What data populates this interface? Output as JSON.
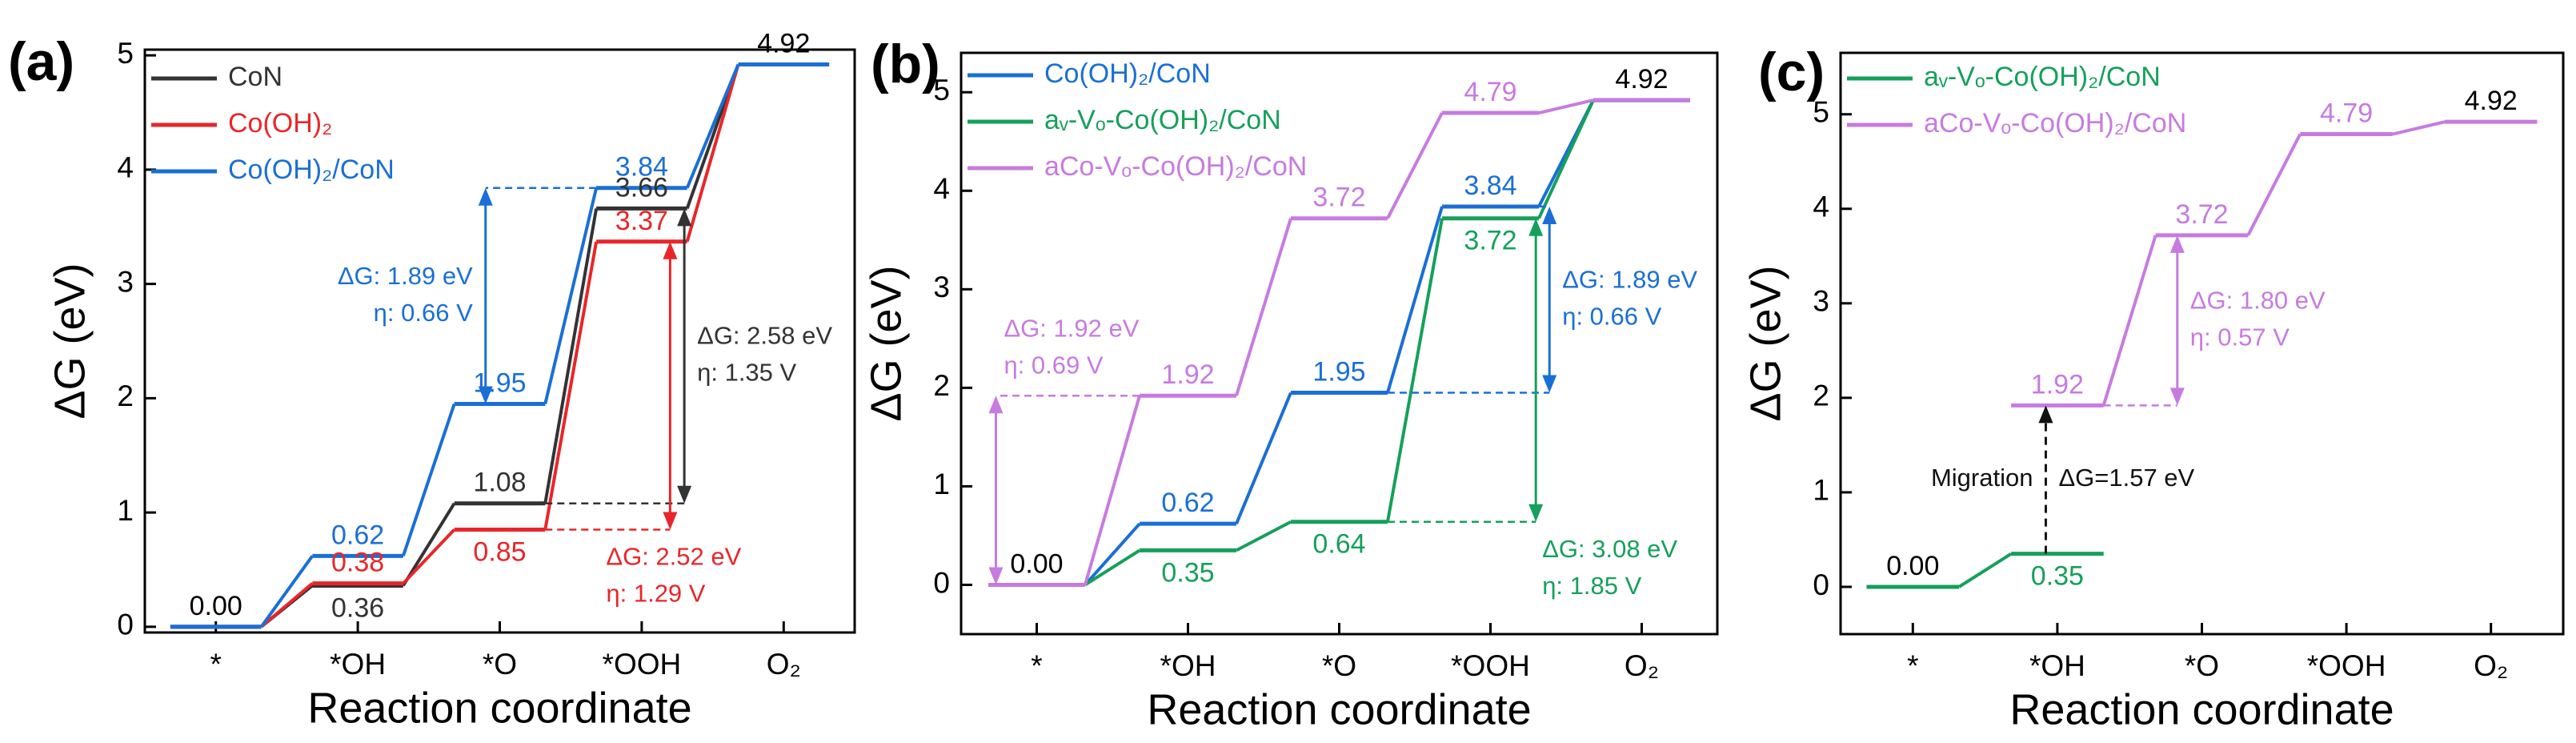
{
  "chart_data": [
    {
      "type": "energy-diagram",
      "panel_label": "(a)",
      "ylabel": "ΔG (eV)",
      "xlabel": "Reaction coordinate",
      "categories": [
        "*",
        "*OH",
        "*O",
        "*OOH",
        "O₂"
      ],
      "ylim": [
        -0.05,
        5.05
      ],
      "yticks": [
        0,
        1,
        2,
        3,
        4,
        5
      ],
      "legend": "upper left",
      "series": [
        {
          "name": "CoN",
          "color": "#333333",
          "values": [
            0,
            0.36,
            1.08,
            3.66,
            4.92
          ],
          "value_labels": [
            "0.00",
            "0.36",
            "1.08",
            "3.66",
            "4.92"
          ]
        },
        {
          "name": "Co(OH)₂",
          "color": "#e8262a",
          "values": [
            0,
            0.38,
            0.85,
            3.37,
            4.92
          ],
          "value_labels": [
            null,
            "0.38",
            "0.85",
            "3.37",
            null
          ]
        },
        {
          "name": "Co(OH)₂/CoN",
          "color": "#1a6fd6",
          "values": [
            0,
            0.62,
            1.95,
            3.84,
            4.92
          ],
          "value_labels": [
            null,
            "0.62",
            "1.95",
            "3.84",
            null
          ]
        }
      ],
      "annotations": [
        {
          "lines": [
            "ΔG: 1.89 eV",
            "η: 0.66 V"
          ],
          "color": "#1a6fd6"
        },
        {
          "lines": [
            "ΔG: 2.58 eV",
            "η: 1.35 V"
          ],
          "color": "#333333"
        },
        {
          "lines": [
            "ΔG: 2.52 eV",
            "η: 1.29 V"
          ],
          "color": "#e8262a"
        }
      ]
    },
    {
      "type": "energy-diagram",
      "panel_label": "(b)",
      "ylabel": "ΔG (eV)",
      "xlabel": "Reaction coordinate",
      "categories": [
        "*",
        "*OH",
        "*O",
        "*OOH",
        "O₂"
      ],
      "ylim": [
        -0.5,
        5.4
      ],
      "yticks": [
        0,
        1,
        2,
        3,
        4,
        5
      ],
      "legend": "upper left",
      "series": [
        {
          "name": "Co(OH)₂/CoN",
          "color": "#1a6fd6",
          "values": [
            0,
            0.62,
            1.95,
            3.84,
            4.92
          ],
          "value_labels": [
            "0.00",
            "0.62",
            "1.95",
            "3.84",
            "4.92"
          ]
        },
        {
          "name": "aᵥ-Vₒ-Co(OH)₂/CoN",
          "color": "#16a05a",
          "values": [
            0,
            0.35,
            0.64,
            3.72,
            4.92
          ],
          "value_labels": [
            null,
            "0.35",
            "0.64",
            "3.72",
            null
          ]
        },
        {
          "name": "aCo-Vₒ-Co(OH)₂/CoN",
          "color": "#c77be0",
          "values": [
            0,
            1.92,
            3.72,
            4.79,
            4.92
          ],
          "value_labels": [
            null,
            "1.92",
            "3.72",
            "4.79",
            null
          ]
        }
      ],
      "annotations": [
        {
          "lines": [
            "ΔG: 1.92 eV",
            "η: 0.69 V"
          ],
          "color": "#c77be0"
        },
        {
          "lines": [
            "ΔG: 1.89 eV",
            "η: 0.66 V"
          ],
          "color": "#1a6fd6"
        },
        {
          "lines": [
            "ΔG: 3.08 eV",
            "η: 1.85 V"
          ],
          "color": "#16a05a"
        }
      ]
    },
    {
      "type": "energy-diagram",
      "panel_label": "(c)",
      "ylabel": "ΔG (eV)",
      "xlabel": "Reaction coordinate",
      "categories": [
        "*",
        "*OH",
        "*O",
        "*OOH",
        "O₂"
      ],
      "ylim": [
        -0.5,
        5.65
      ],
      "yticks": [
        0,
        1,
        2,
        3,
        4,
        5
      ],
      "legend": "upper left",
      "series": [
        {
          "name": "aᵥ-Vₒ-Co(OH)₂/CoN",
          "color": "#16a05a",
          "values": [
            0,
            0.35,
            null,
            null,
            null
          ],
          "value_labels": [
            "0.00",
            "0.35",
            null,
            null,
            null
          ]
        },
        {
          "name": "aCo-Vₒ-Co(OH)₂/CoN",
          "color": "#c77be0",
          "values": [
            null,
            1.92,
            3.72,
            4.79,
            4.92
          ],
          "value_labels": [
            null,
            "1.92",
            "3.72",
            "4.79",
            "4.92"
          ]
        }
      ],
      "annotations": [
        {
          "lines": [
            "ΔG: 1.80 eV",
            "η: 0.57 V"
          ],
          "color": "#c77be0"
        },
        {
          "lines": [
            "Migration"
          ],
          "color": "#111111"
        },
        {
          "lines": [
            "ΔG=1.57 eV"
          ],
          "color": "#111111"
        }
      ]
    }
  ]
}
